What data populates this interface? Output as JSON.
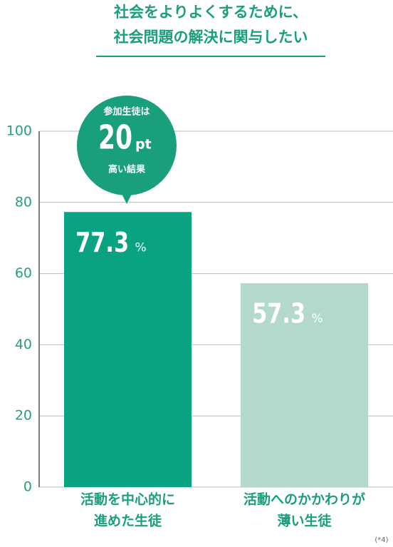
{
  "chart_data": {
    "type": "bar",
    "title": [
      "社会をよりよくするために、",
      "社会問題の解決に関与したい"
    ],
    "categories": [
      [
        "活動を中心的に",
        "進めた生徒"
      ],
      [
        "活動へのかかわりが",
        "薄い生徒"
      ]
    ],
    "values": [
      77.3,
      57.3
    ],
    "value_unit": "%",
    "colors": [
      "#0aa382",
      "#b3d9cf"
    ],
    "ylim": [
      0,
      100
    ],
    "yticks": [
      0,
      20,
      40,
      60,
      80,
      100
    ],
    "grid": true,
    "annotation": {
      "line1": "参加生徒は",
      "value": 20,
      "unit": "pt",
      "line2": "高い結果"
    },
    "footnote": "(*4)"
  }
}
